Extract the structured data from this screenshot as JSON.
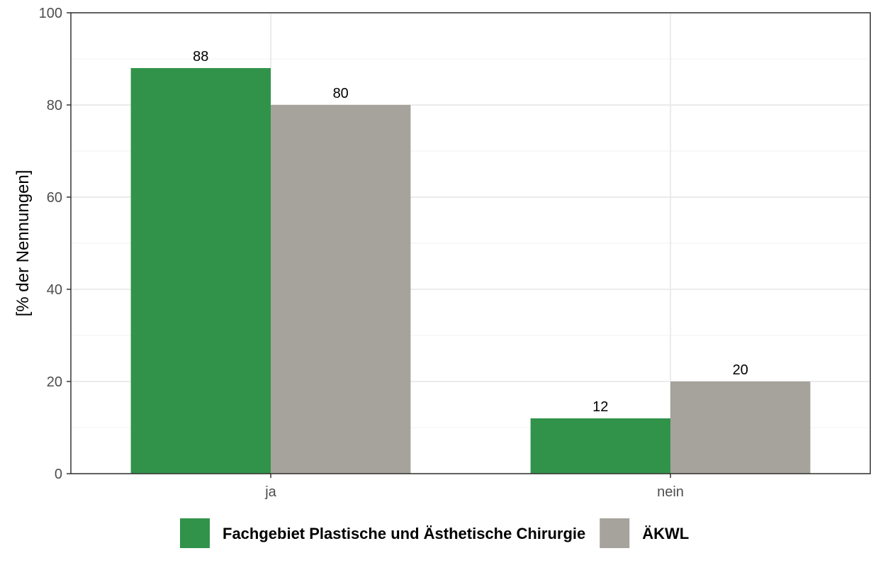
{
  "chart_data": {
    "type": "bar",
    "categories": [
      "ja",
      "nein"
    ],
    "series": [
      {
        "name": "Fachgebiet Plastische und Ästhetische Chirurgie",
        "values": [
          88,
          12
        ],
        "labels": [
          "88",
          "12"
        ],
        "color": "#31934a"
      },
      {
        "name": "ÄKWL",
        "values": [
          80,
          20
        ],
        "labels": [
          "80",
          "20"
        ],
        "color": "#a5a39b"
      }
    ],
    "title": "",
    "xlabel": "",
    "ylabel": "[% der Nennungen]",
    "ylim": [
      0,
      100
    ],
    "yticks": [
      0,
      20,
      40,
      60,
      80,
      100
    ],
    "grid": true,
    "legend_position": "bottom"
  }
}
